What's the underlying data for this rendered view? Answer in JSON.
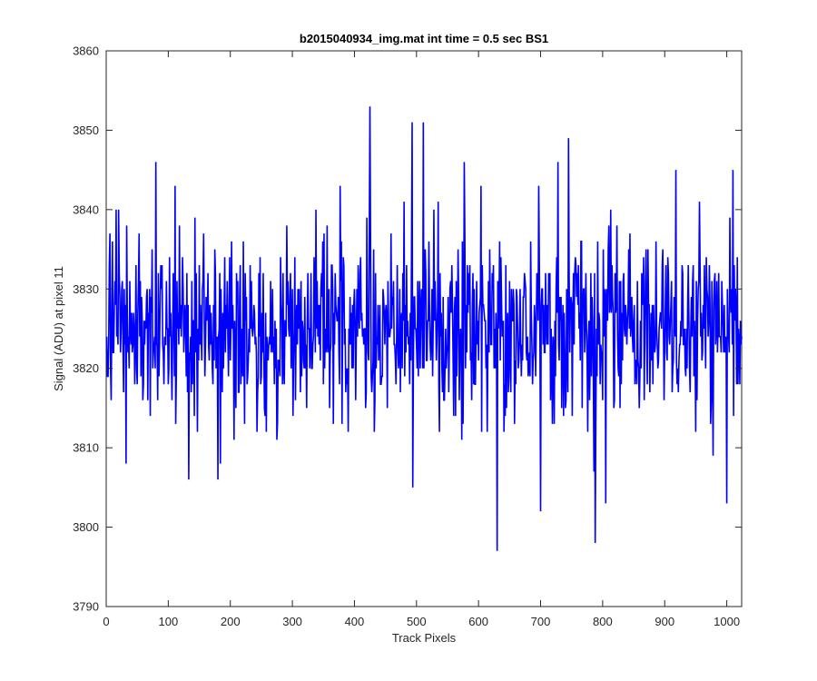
{
  "chart_data": {
    "type": "line",
    "title": "b2015040934_img.mat int time = 0.5 sec   BS1",
    "xlabel": "Track Pixels",
    "ylabel": "Signal (ADU) at pixel 11",
    "xlim": [
      0,
      1024
    ],
    "ylim": [
      3790,
      3860
    ],
    "xticks": [
      0,
      100,
      200,
      300,
      400,
      500,
      600,
      700,
      800,
      900,
      1000
    ],
    "yticks": [
      3790,
      3800,
      3810,
      3820,
      3830,
      3840,
      3850,
      3860
    ],
    "grid": false,
    "line_color": "#0000ff",
    "series": [
      {
        "x_start": 1,
        "x_step": 1,
        "count": 1024,
        "mean": 3825,
        "sd": 5.5,
        "range": [
          3797,
          3853
        ],
        "values_note_points": [
          {
            "x": 6,
            "y": 3837
          },
          {
            "x": 16,
            "y": 3840
          },
          {
            "x": 20,
            "y": 3840
          },
          {
            "x": 32,
            "y": 3808
          },
          {
            "x": 33,
            "y": 3838
          },
          {
            "x": 80,
            "y": 3846
          },
          {
            "x": 133,
            "y": 3806
          },
          {
            "x": 180,
            "y": 3806
          },
          {
            "x": 377,
            "y": 3843
          },
          {
            "x": 425,
            "y": 3853
          },
          {
            "x": 493,
            "y": 3851
          },
          {
            "x": 494,
            "y": 3805
          },
          {
            "x": 511,
            "y": 3851
          },
          {
            "x": 604,
            "y": 3843
          },
          {
            "x": 630,
            "y": 3797
          },
          {
            "x": 700,
            "y": 3802
          },
          {
            "x": 728,
            "y": 3846
          },
          {
            "x": 745,
            "y": 3849
          },
          {
            "x": 788,
            "y": 3798
          },
          {
            "x": 805,
            "y": 3803
          },
          {
            "x": 918,
            "y": 3845
          },
          {
            "x": 950,
            "y": 3812
          },
          {
            "x": 1000,
            "y": 3803
          },
          {
            "x": 1010,
            "y": 3845
          }
        ]
      }
    ]
  }
}
